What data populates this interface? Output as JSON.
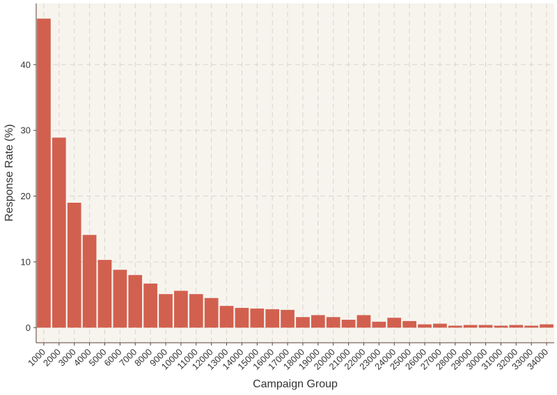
{
  "chart_data": {
    "type": "bar",
    "title": "",
    "xlabel": "Campaign Group",
    "ylabel": "Response Rate (%)",
    "categories": [
      "1000",
      "2000",
      "3000",
      "4000",
      "5000",
      "6000",
      "7000",
      "8000",
      "9000",
      "10000",
      "11000",
      "12000",
      "13000",
      "14000",
      "15000",
      "16000",
      "17000",
      "18000",
      "19000",
      "20000",
      "21000",
      "22000",
      "23000",
      "24000",
      "25000",
      "26000",
      "27000",
      "28000",
      "29000",
      "30000",
      "31000",
      "32000",
      "33000",
      "34000"
    ],
    "values": [
      47.0,
      28.9,
      19.0,
      14.1,
      10.3,
      8.8,
      8.0,
      6.7,
      5.1,
      5.6,
      5.1,
      4.5,
      3.3,
      3.0,
      2.9,
      2.8,
      2.7,
      1.6,
      1.9,
      1.6,
      1.2,
      1.9,
      0.9,
      1.5,
      1.0,
      0.5,
      0.6,
      0.3,
      0.4,
      0.4,
      0.3,
      0.4,
      0.3,
      0.5
    ],
    "ylim": [
      -2.3,
      49.3
    ],
    "yticks": [
      0,
      10,
      20,
      30,
      40
    ],
    "grid": true,
    "colors": {
      "bar": "#d2604f",
      "panel": "#f7f4ee",
      "grid": "#d9d5cc",
      "axis": "#5a3f33",
      "text": "#333333"
    }
  }
}
